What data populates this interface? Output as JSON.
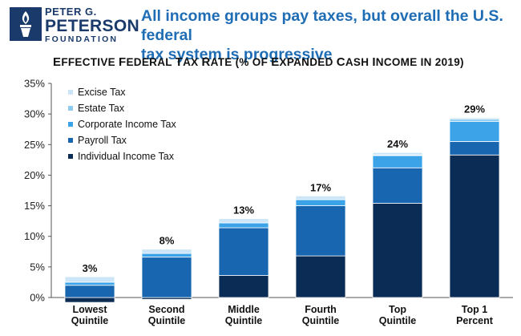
{
  "header": {
    "logo": {
      "line1": "PETER G.",
      "line2": "PETERSON",
      "line3": "FOUNDATION"
    },
    "headline_line1": "All income groups pay taxes, but overall the U.S. federal",
    "headline_line2": "tax system is progressive"
  },
  "chart_data": {
    "type": "bar",
    "stacked": true,
    "title": "Effective Federal Tax Rate (% of Expanded Cash Income in 2019)",
    "categories": [
      [
        "Lowest",
        "Quintile"
      ],
      [
        "Second",
        "Quintile"
      ],
      [
        "Middle",
        "Quintile"
      ],
      [
        "Fourth",
        "Quintile"
      ],
      [
        "Top",
        "Quintile"
      ],
      [
        "Top 1",
        "Percent"
      ]
    ],
    "totals_labels": [
      "3%",
      "8%",
      "13%",
      "17%",
      "24%",
      "29%"
    ],
    "yticks": [
      "0%",
      "5%",
      "10%",
      "15%",
      "20%",
      "25%",
      "30%",
      "35%"
    ],
    "ylim": [
      0,
      35
    ],
    "grid": false,
    "legend_position": "top-left",
    "series": [
      {
        "name": "Individual Income Tax",
        "color": "#0b2d55",
        "values": [
          -0.8,
          -0.3,
          3.6,
          6.8,
          15.4,
          23.3
        ]
      },
      {
        "name": "Payroll Tax",
        "color": "#1866b0",
        "values": [
          2.0,
          6.6,
          7.8,
          8.2,
          5.8,
          2.2
        ]
      },
      {
        "name": "Corporate Income Tax",
        "color": "#3da3e8",
        "values": [
          0.5,
          0.6,
          0.8,
          1.0,
          2.0,
          3.3
        ]
      },
      {
        "name": "Estate Tax",
        "color": "#8fcbf0",
        "values": [
          0.0,
          0.0,
          0.0,
          0.0,
          0.1,
          0.4
        ]
      },
      {
        "name": "Excise Tax",
        "color": "#cce6f7",
        "values": [
          0.9,
          0.7,
          0.7,
          0.6,
          0.4,
          0.2
        ]
      }
    ]
  }
}
